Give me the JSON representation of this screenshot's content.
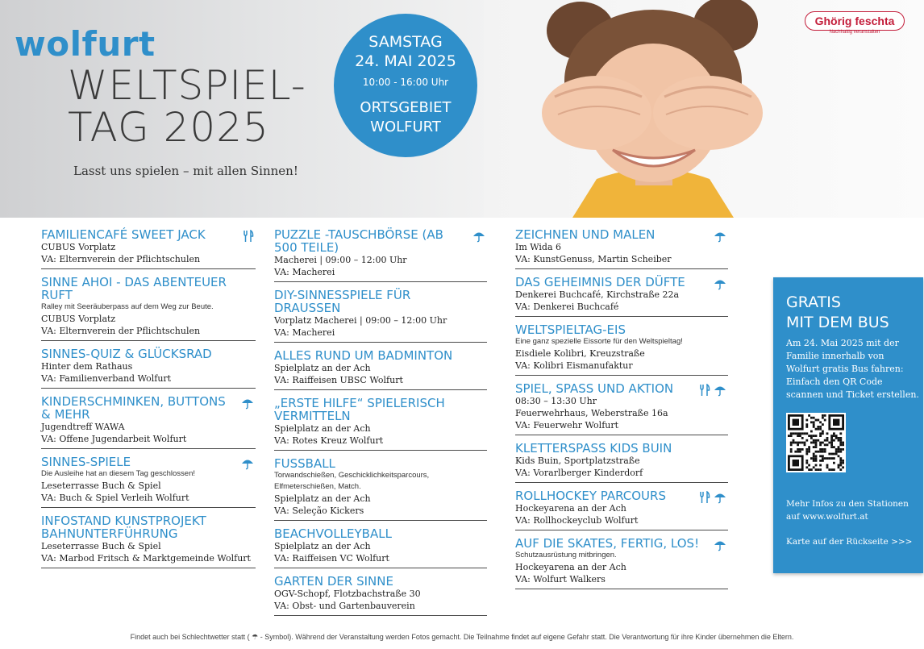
{
  "header": {
    "logo": "wolfurt",
    "title_line1": "WELTSPIEL-",
    "title_line2": "TAG 2025",
    "tagline": "Lasst uns spielen – mit allen Sinnen!",
    "day": "SAMSTAG",
    "date": "24. MAI 2025",
    "time": "10:00 - 16:00 Uhr",
    "place_line1": "ORTSGEBIET",
    "place_line2": "WOLFURT",
    "partner_name": "Ghörig feschta",
    "partner_sub": "Nachhaltig veranstalten"
  },
  "colors": {
    "accent": "#2f8fca",
    "partner": "#c31d3a"
  },
  "columns": [
    [
      {
        "title": "FAMILIENCAFÉ SWEET JACK",
        "icons": [
          "food-icon"
        ],
        "lines": [
          "CUBUS Vorplatz",
          "VA: Elternverein der Pflichtschulen"
        ]
      },
      {
        "title": "SINNE AHOI - DAS ABENTEUER RUFT",
        "icons": [],
        "note": "Ralley mit Seeräuberpass auf dem Weg zur Beute.",
        "lines": [
          "CUBUS Vorplatz",
          "VA: Elternverein der Pflichtschulen"
        ]
      },
      {
        "title": "SINNES-QUIZ & GLÜCKSRAD",
        "icons": [],
        "lines": [
          "Hinter dem Rathaus",
          "VA: Familienverband Wolfurt"
        ]
      },
      {
        "title": "KINDERSCHMINKEN, BUTTONS & MEHR",
        "icons": [
          "umbrella-icon"
        ],
        "lines": [
          "Jugendtreff WAWA",
          "VA: Offene Jugendarbeit Wolfurt"
        ]
      },
      {
        "title": "SINNES-SPIELE",
        "icons": [
          "umbrella-icon"
        ],
        "note": "Die Ausleihe hat an diesem Tag geschlossen!",
        "lines": [
          "Leseterrasse Buch & Spiel",
          "VA: Buch & Spiel Verleih Wolfurt"
        ]
      },
      {
        "title": "INFOSTAND KUNSTPROJEKT BAHNUNTERFÜHRUNG",
        "icons": [],
        "lines": [
          "Leseterrasse Buch & Spiel",
          "VA: Marbod Fritsch & Marktgemeinde Wolfurt"
        ]
      }
    ],
    [
      {
        "title": "PUZZLE -TAUSCHBÖRSE (ab 500 Teile)",
        "icons": [
          "umbrella-icon"
        ],
        "lines": [
          "Macherei | 09:00 – 12:00 Uhr",
          "VA: Macherei"
        ]
      },
      {
        "title": "DIY-SINNESSPIELE FÜR DRAUSSEN",
        "icons": [],
        "lines": [
          "Vorplatz Macherei | 09:00 – 12:00 Uhr",
          "VA: Macherei"
        ]
      },
      {
        "title": "ALLES RUND UM BADMINTON",
        "icons": [],
        "lines": [
          "Spielplatz an der Ach",
          "VA: Raiffeisen UBSC Wolfurt"
        ]
      },
      {
        "title": "„ERSTE HILFE“ SPIELERISCH VERMITTELN",
        "icons": [],
        "lines": [
          "Spielplatz an der Ach",
          "VA: Rotes Kreuz Wolfurt"
        ]
      },
      {
        "title": "FUSSBALL",
        "icons": [],
        "note": "Torwandschießen, Geschicklichkeitsparcours, Elfmeterschießen, Match.",
        "lines": [
          "Spielplatz an der Ach",
          "VA: Seleção Kickers"
        ]
      },
      {
        "title": "BEACHVOLLEYBALL",
        "icons": [],
        "lines": [
          "Spielplatz an der Ach",
          "VA: Raiffeisen VC Wolfurt"
        ]
      },
      {
        "title": "GARTEN DER SINNE",
        "icons": [],
        "lines": [
          "OGV-Schopf, Flotzbachstraße 30",
          "VA: Obst- und Gartenbauverein"
        ]
      }
    ],
    [
      {
        "title": "ZEICHNEN UND MALEN",
        "icons": [
          "umbrella-icon"
        ],
        "lines": [
          "Im Wida 6",
          "VA: KunstGenuss, Martin Scheiber"
        ]
      },
      {
        "title": "DAS GEHEIMNIS DER DÜFTE",
        "icons": [
          "umbrella-icon"
        ],
        "lines": [
          "Denkerei Buchcafé, Kirchstraße 22a",
          "VA: Denkerei Buchcafé"
        ]
      },
      {
        "title": "WELTSPIELTAG-EIS",
        "icons": [],
        "note": "Eine ganz spezielle Eissorte für den Weltspieltag!",
        "lines": [
          "Eisdiele Kolibri, Kreuzstraße",
          "VA: Kolibri Eismanufaktur"
        ]
      },
      {
        "title": "SPIEL, SPASS UND AKTION",
        "icons": [
          "food-icon",
          "umbrella-icon"
        ],
        "lines": [
          "08:30 – 13:30 Uhr",
          "Feuerwehrhaus, Weberstraße 16a",
          "VA: Feuerwehr Wolfurt"
        ]
      },
      {
        "title": "KLETTERSPASS KIDS BUIN",
        "icons": [],
        "lines": [
          "Kids Buin, Sportplatzstraße",
          "VA: Vorarlberger Kinderdorf"
        ]
      },
      {
        "title": "ROLLHOCKEY PARCOURS",
        "icons": [
          "food-icon",
          "umbrella-icon"
        ],
        "lines": [
          "Hockeyarena an der Ach",
          "VA: Rollhockeyclub Wolfurt"
        ]
      },
      {
        "title": "AUF DIE SKATES, FERTIG, LOS!",
        "icons": [
          "umbrella-icon"
        ],
        "note": "Schutzausrüstung mitbringen.",
        "lines": [
          "Hockeyarena an der Ach",
          "VA: Wolfurt Walkers"
        ]
      }
    ]
  ],
  "bus": {
    "title_line1": "GRATIS",
    "title_line2": "MIT DEM BUS",
    "text": "Am 24. Mai 2025 mit der Familie innerhalb von Wolfurt gratis Bus fahren: Einfach den QR Code scannen und Ticket erstellen.",
    "info": "Mehr Infos zu den Stationen auf www.wolfurt.at",
    "map": "Karte auf der Rückseite >>>"
  },
  "footer": "Findet auch bei Schlechtwetter statt ( ☂ - Symbol). Während der Veranstaltung werden Fotos gemacht. Die Teilnahme findet auf eigene Gefahr statt. Die Verantwortung für ihre Kinder übernehmen die Eltern."
}
